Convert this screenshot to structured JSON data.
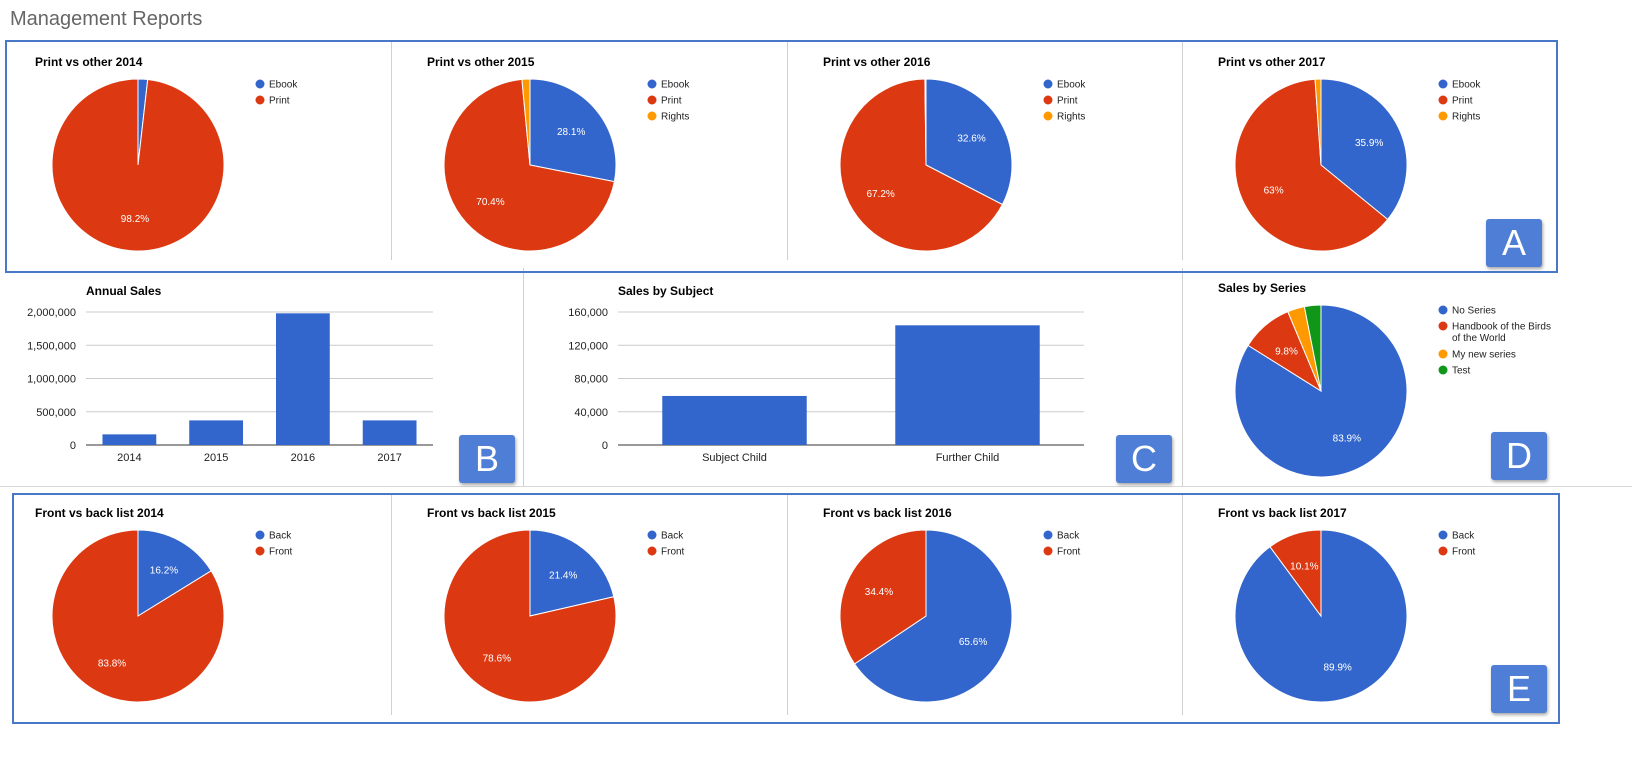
{
  "page": {
    "title": "Management Reports"
  },
  "colors": {
    "blue": "#3366cc",
    "red": "#dc3912",
    "orange": "#ff9900",
    "green": "#109618"
  },
  "badges": [
    "A",
    "B",
    "C",
    "D",
    "E"
  ],
  "chart_data": [
    {
      "type": "pie",
      "title": "Print vs other 2014",
      "legend": [
        "Ebook",
        "Print"
      ],
      "series": [
        {
          "values": [
            1.8,
            98.2
          ]
        }
      ],
      "slice_labels": [
        "",
        "98.2%"
      ]
    },
    {
      "type": "pie",
      "title": "Print vs other 2015",
      "legend": [
        "Ebook",
        "Print",
        "Rights"
      ],
      "series": [
        {
          "values": [
            28.1,
            70.4,
            1.5
          ]
        }
      ],
      "slice_labels": [
        "28.1%",
        "70.4%",
        ""
      ]
    },
    {
      "type": "pie",
      "title": "Print vs other 2016",
      "legend": [
        "Ebook",
        "Print",
        "Rights"
      ],
      "series": [
        {
          "values": [
            32.6,
            67.2,
            0.2
          ]
        }
      ],
      "slice_labels": [
        "32.6%",
        "67.2%",
        ""
      ]
    },
    {
      "type": "pie",
      "title": "Print vs other 2017",
      "legend": [
        "Ebook",
        "Print",
        "Rights"
      ],
      "series": [
        {
          "values": [
            35.9,
            63,
            1.1
          ]
        }
      ],
      "slice_labels": [
        "35.9%",
        "63%",
        ""
      ]
    },
    {
      "type": "bar",
      "title": "Annual Sales",
      "categories": [
        "2014",
        "2015",
        "2016",
        "2017"
      ],
      "values": [
        160000,
        370000,
        1980000,
        370000
      ],
      "ylim": [
        0,
        2000000
      ],
      "yticks": [
        0,
        500000,
        1000000,
        1500000,
        2000000
      ],
      "ytick_labels": [
        "0",
        "500,000",
        "1,000,000",
        "1,500,000",
        "2,000,000"
      ]
    },
    {
      "type": "bar",
      "title": "Sales by Subject",
      "categories": [
        "Subject Child",
        "Further Child"
      ],
      "values": [
        59000,
        144000
      ],
      "ylim": [
        0,
        160000
      ],
      "yticks": [
        0,
        40000,
        80000,
        120000,
        160000
      ],
      "ytick_labels": [
        "0",
        "40,000",
        "80,000",
        "120,000",
        "160,000"
      ]
    },
    {
      "type": "pie",
      "title": "Sales by Series",
      "legend": [
        "No Series",
        "Handbook of the Birds of the World",
        "My new series",
        "Test"
      ],
      "series": [
        {
          "values": [
            83.9,
            9.8,
            3.2,
            3.1
          ]
        }
      ],
      "slice_labels": [
        "83.9%",
        "9.8%",
        "",
        ""
      ]
    },
    {
      "type": "pie",
      "title": "Front vs back list 2014",
      "legend": [
        "Back",
        "Front"
      ],
      "series": [
        {
          "values": [
            16.2,
            83.8
          ]
        }
      ],
      "slice_labels": [
        "16.2%",
        "83.8%"
      ]
    },
    {
      "type": "pie",
      "title": "Front vs back list 2015",
      "legend": [
        "Back",
        "Front"
      ],
      "series": [
        {
          "values": [
            21.4,
            78.6
          ]
        }
      ],
      "slice_labels": [
        "21.4%",
        "78.6%"
      ]
    },
    {
      "type": "pie",
      "title": "Front vs back list 2016",
      "legend": [
        "Back",
        "Front"
      ],
      "series": [
        {
          "values": [
            65.6,
            34.4
          ]
        }
      ],
      "slice_labels": [
        "65.6%",
        "34.4%"
      ]
    },
    {
      "type": "pie",
      "title": "Front vs back list 2017",
      "legend": [
        "Back",
        "Front"
      ],
      "series": [
        {
          "values": [
            89.9,
            10.1
          ]
        }
      ],
      "slice_labels": [
        "89.9%",
        "10.1%"
      ]
    }
  ]
}
